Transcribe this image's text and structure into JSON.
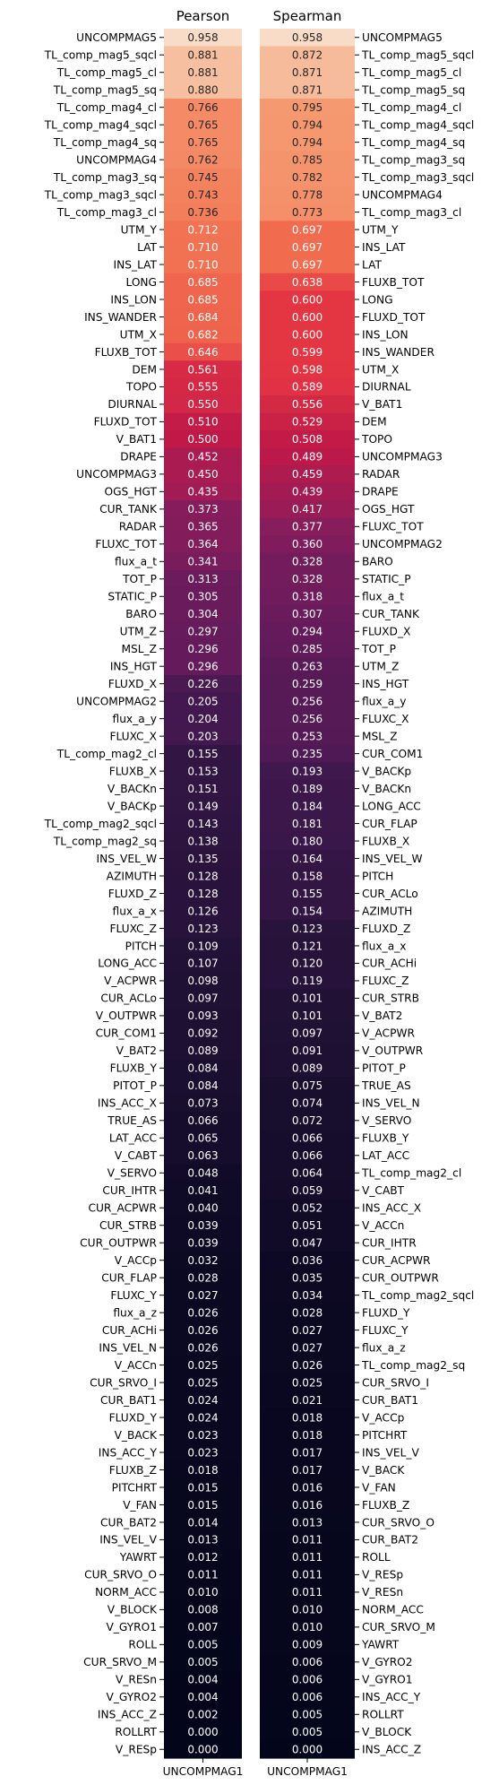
{
  "chart_data": [
    {
      "type": "heatmap",
      "title": "Pearson",
      "xlabel": "",
      "ylabel": "",
      "x_tick_labels": [
        "UNCOMPMAG1"
      ],
      "y_tick_side": "left",
      "colormap": "rocket",
      "color_range": [
        0,
        1
      ],
      "grid": false,
      "rows": [
        {
          "label": "UNCOMPMAG5",
          "value": 0.958
        },
        {
          "label": "TL_comp_mag5_sqcl",
          "value": 0.881
        },
        {
          "label": "TL_comp_mag5_cl",
          "value": 0.881
        },
        {
          "label": "TL_comp_mag5_sq",
          "value": 0.88
        },
        {
          "label": "TL_comp_mag4_cl",
          "value": 0.766
        },
        {
          "label": "TL_comp_mag4_sqcl",
          "value": 0.765
        },
        {
          "label": "TL_comp_mag4_sq",
          "value": 0.765
        },
        {
          "label": "UNCOMPMAG4",
          "value": 0.762
        },
        {
          "label": "TL_comp_mag3_sq",
          "value": 0.745
        },
        {
          "label": "TL_comp_mag3_sqcl",
          "value": 0.743
        },
        {
          "label": "TL_comp_mag3_cl",
          "value": 0.736
        },
        {
          "label": "UTM_Y",
          "value": 0.712
        },
        {
          "label": "LAT",
          "value": 0.71
        },
        {
          "label": "INS_LAT",
          "value": 0.71
        },
        {
          "label": "LONG",
          "value": 0.685
        },
        {
          "label": "INS_LON",
          "value": 0.685
        },
        {
          "label": "INS_WANDER",
          "value": 0.684
        },
        {
          "label": "UTM_X",
          "value": 0.682
        },
        {
          "label": "FLUXB_TOT",
          "value": 0.646
        },
        {
          "label": "DEM",
          "value": 0.561
        },
        {
          "label": "TOPO",
          "value": 0.555
        },
        {
          "label": "DIURNAL",
          "value": 0.55
        },
        {
          "label": "FLUXD_TOT",
          "value": 0.51
        },
        {
          "label": "V_BAT1",
          "value": 0.5
        },
        {
          "label": "DRAPE",
          "value": 0.452
        },
        {
          "label": "UNCOMPMAG3",
          "value": 0.45
        },
        {
          "label": "OGS_HGT",
          "value": 0.435
        },
        {
          "label": "CUR_TANK",
          "value": 0.373
        },
        {
          "label": "RADAR",
          "value": 0.365
        },
        {
          "label": "FLUXC_TOT",
          "value": 0.364
        },
        {
          "label": "flux_a_t",
          "value": 0.341
        },
        {
          "label": "TOT_P",
          "value": 0.313
        },
        {
          "label": "STATIC_P",
          "value": 0.305
        },
        {
          "label": "BARO",
          "value": 0.304
        },
        {
          "label": "UTM_Z",
          "value": 0.297
        },
        {
          "label": "MSL_Z",
          "value": 0.296
        },
        {
          "label": "INS_HGT",
          "value": 0.296
        },
        {
          "label": "FLUXD_X",
          "value": 0.226
        },
        {
          "label": "UNCOMPMAG2",
          "value": 0.205
        },
        {
          "label": "flux_a_y",
          "value": 0.204
        },
        {
          "label": "FLUXC_X",
          "value": 0.203
        },
        {
          "label": "TL_comp_mag2_cl",
          "value": 0.155
        },
        {
          "label": "FLUXB_X",
          "value": 0.153
        },
        {
          "label": "V_BACKn",
          "value": 0.151
        },
        {
          "label": "V_BACKp",
          "value": 0.149
        },
        {
          "label": "TL_comp_mag2_sqcl",
          "value": 0.143
        },
        {
          "label": "TL_comp_mag2_sq",
          "value": 0.138
        },
        {
          "label": "INS_VEL_W",
          "value": 0.135
        },
        {
          "label": "AZIMUTH",
          "value": 0.128
        },
        {
          "label": "FLUXD_Z",
          "value": 0.128
        },
        {
          "label": "flux_a_x",
          "value": 0.126
        },
        {
          "label": "FLUXC_Z",
          "value": 0.123
        },
        {
          "label": "PITCH",
          "value": 0.109
        },
        {
          "label": "LONG_ACC",
          "value": 0.107
        },
        {
          "label": "V_ACPWR",
          "value": 0.098
        },
        {
          "label": "CUR_ACLo",
          "value": 0.097
        },
        {
          "label": "V_OUTPWR",
          "value": 0.093
        },
        {
          "label": "CUR_COM1",
          "value": 0.092
        },
        {
          "label": "V_BAT2",
          "value": 0.089
        },
        {
          "label": "FLUXB_Y",
          "value": 0.084
        },
        {
          "label": "PITOT_P",
          "value": 0.084
        },
        {
          "label": "INS_ACC_X",
          "value": 0.073
        },
        {
          "label": "TRUE_AS",
          "value": 0.066
        },
        {
          "label": "LAT_ACC",
          "value": 0.065
        },
        {
          "label": "V_CABT",
          "value": 0.063
        },
        {
          "label": "V_SERVO",
          "value": 0.048
        },
        {
          "label": "CUR_IHTR",
          "value": 0.041
        },
        {
          "label": "CUR_ACPWR",
          "value": 0.04
        },
        {
          "label": "CUR_STRB",
          "value": 0.039
        },
        {
          "label": "CUR_OUTPWR",
          "value": 0.039
        },
        {
          "label": "V_ACCp",
          "value": 0.032
        },
        {
          "label": "CUR_FLAP",
          "value": 0.028
        },
        {
          "label": "FLUXC_Y",
          "value": 0.027
        },
        {
          "label": "flux_a_z",
          "value": 0.026
        },
        {
          "label": "CUR_ACHi",
          "value": 0.026
        },
        {
          "label": "INS_VEL_N",
          "value": 0.026
        },
        {
          "label": "V_ACCn",
          "value": 0.025
        },
        {
          "label": "CUR_SRVO_I",
          "value": 0.025
        },
        {
          "label": "CUR_BAT1",
          "value": 0.024
        },
        {
          "label": "FLUXD_Y",
          "value": 0.024
        },
        {
          "label": "V_BACK",
          "value": 0.023
        },
        {
          "label": "INS_ACC_Y",
          "value": 0.023
        },
        {
          "label": "FLUXB_Z",
          "value": 0.018
        },
        {
          "label": "PITCHRT",
          "value": 0.015
        },
        {
          "label": "V_FAN",
          "value": 0.015
        },
        {
          "label": "CUR_BAT2",
          "value": 0.014
        },
        {
          "label": "INS_VEL_V",
          "value": 0.013
        },
        {
          "label": "YAWRT",
          "value": 0.012
        },
        {
          "label": "CUR_SRVO_O",
          "value": 0.011
        },
        {
          "label": "NORM_ACC",
          "value": 0.01
        },
        {
          "label": "V_BLOCK",
          "value": 0.008
        },
        {
          "label": "V_GYRO1",
          "value": 0.007
        },
        {
          "label": "ROLL",
          "value": 0.005
        },
        {
          "label": "CUR_SRVO_M",
          "value": 0.005
        },
        {
          "label": "V_RESn",
          "value": 0.004
        },
        {
          "label": "V_GYRO2",
          "value": 0.004
        },
        {
          "label": "INS_ACC_Z",
          "value": 0.002
        },
        {
          "label": "ROLLRT",
          "value": 0.0
        },
        {
          "label": "V_RESp",
          "value": 0.0
        }
      ]
    },
    {
      "type": "heatmap",
      "title": "Spearman",
      "xlabel": "",
      "ylabel": "",
      "x_tick_labels": [
        "UNCOMPMAG1"
      ],
      "y_tick_side": "right",
      "colormap": "rocket",
      "color_range": [
        0,
        1
      ],
      "grid": false,
      "rows": [
        {
          "label": "UNCOMPMAG5",
          "value": 0.958
        },
        {
          "label": "TL_comp_mag5_sqcl",
          "value": 0.872
        },
        {
          "label": "TL_comp_mag5_cl",
          "value": 0.871
        },
        {
          "label": "TL_comp_mag5_sq",
          "value": 0.871
        },
        {
          "label": "TL_comp_mag4_cl",
          "value": 0.795
        },
        {
          "label": "TL_comp_mag4_sqcl",
          "value": 0.794
        },
        {
          "label": "TL_comp_mag4_sq",
          "value": 0.794
        },
        {
          "label": "TL_comp_mag3_sq",
          "value": 0.785
        },
        {
          "label": "TL_comp_mag3_sqcl",
          "value": 0.782
        },
        {
          "label": "UNCOMPMAG4",
          "value": 0.778
        },
        {
          "label": "TL_comp_mag3_cl",
          "value": 0.773
        },
        {
          "label": "UTM_Y",
          "value": 0.697
        },
        {
          "label": "INS_LAT",
          "value": 0.697
        },
        {
          "label": "LAT",
          "value": 0.697
        },
        {
          "label": "FLUXB_TOT",
          "value": 0.638
        },
        {
          "label": "LONG",
          "value": 0.6
        },
        {
          "label": "FLUXD_TOT",
          "value": 0.6
        },
        {
          "label": "INS_LON",
          "value": 0.6
        },
        {
          "label": "INS_WANDER",
          "value": 0.599
        },
        {
          "label": "UTM_X",
          "value": 0.598
        },
        {
          "label": "DIURNAL",
          "value": 0.589
        },
        {
          "label": "V_BAT1",
          "value": 0.556
        },
        {
          "label": "DEM",
          "value": 0.529
        },
        {
          "label": "TOPO",
          "value": 0.508
        },
        {
          "label": "UNCOMPMAG3",
          "value": 0.489
        },
        {
          "label": "RADAR",
          "value": 0.459
        },
        {
          "label": "DRAPE",
          "value": 0.439
        },
        {
          "label": "OGS_HGT",
          "value": 0.417
        },
        {
          "label": "FLUXC_TOT",
          "value": 0.377
        },
        {
          "label": "UNCOMPMAG2",
          "value": 0.36
        },
        {
          "label": "BARO",
          "value": 0.328
        },
        {
          "label": "STATIC_P",
          "value": 0.328
        },
        {
          "label": "flux_a_t",
          "value": 0.318
        },
        {
          "label": "CUR_TANK",
          "value": 0.307
        },
        {
          "label": "FLUXD_X",
          "value": 0.294
        },
        {
          "label": "TOT_P",
          "value": 0.285
        },
        {
          "label": "UTM_Z",
          "value": 0.263
        },
        {
          "label": "INS_HGT",
          "value": 0.259
        },
        {
          "label": "flux_a_y",
          "value": 0.256
        },
        {
          "label": "FLUXC_X",
          "value": 0.256
        },
        {
          "label": "MSL_Z",
          "value": 0.253
        },
        {
          "label": "CUR_COM1",
          "value": 0.235
        },
        {
          "label": "V_BACKp",
          "value": 0.193
        },
        {
          "label": "V_BACKn",
          "value": 0.189
        },
        {
          "label": "LONG_ACC",
          "value": 0.184
        },
        {
          "label": "CUR_FLAP",
          "value": 0.181
        },
        {
          "label": "FLUXB_X",
          "value": 0.18
        },
        {
          "label": "INS_VEL_W",
          "value": 0.164
        },
        {
          "label": "PITCH",
          "value": 0.158
        },
        {
          "label": "CUR_ACLo",
          "value": 0.155
        },
        {
          "label": "AZIMUTH",
          "value": 0.154
        },
        {
          "label": "FLUXD_Z",
          "value": 0.123
        },
        {
          "label": "flux_a_x",
          "value": 0.121
        },
        {
          "label": "CUR_ACHi",
          "value": 0.12
        },
        {
          "label": "FLUXC_Z",
          "value": 0.119
        },
        {
          "label": "CUR_STRB",
          "value": 0.101
        },
        {
          "label": "V_BAT2",
          "value": 0.101
        },
        {
          "label": "V_ACPWR",
          "value": 0.097
        },
        {
          "label": "V_OUTPWR",
          "value": 0.091
        },
        {
          "label": "PITOT_P",
          "value": 0.089
        },
        {
          "label": "TRUE_AS",
          "value": 0.075
        },
        {
          "label": "INS_VEL_N",
          "value": 0.074
        },
        {
          "label": "V_SERVO",
          "value": 0.072
        },
        {
          "label": "FLUXB_Y",
          "value": 0.066
        },
        {
          "label": "LAT_ACC",
          "value": 0.066
        },
        {
          "label": "TL_comp_mag2_cl",
          "value": 0.064
        },
        {
          "label": "V_CABT",
          "value": 0.059
        },
        {
          "label": "INS_ACC_X",
          "value": 0.052
        },
        {
          "label": "V_ACCn",
          "value": 0.051
        },
        {
          "label": "CUR_IHTR",
          "value": 0.047
        },
        {
          "label": "CUR_ACPWR",
          "value": 0.036
        },
        {
          "label": "CUR_OUTPWR",
          "value": 0.035
        },
        {
          "label": "TL_comp_mag2_sqcl",
          "value": 0.034
        },
        {
          "label": "FLUXD_Y",
          "value": 0.028
        },
        {
          "label": "FLUXC_Y",
          "value": 0.027
        },
        {
          "label": "flux_a_z",
          "value": 0.027
        },
        {
          "label": "TL_comp_mag2_sq",
          "value": 0.026
        },
        {
          "label": "CUR_SRVO_I",
          "value": 0.025
        },
        {
          "label": "CUR_BAT1",
          "value": 0.021
        },
        {
          "label": "V_ACCp",
          "value": 0.018
        },
        {
          "label": "PITCHRT",
          "value": 0.018
        },
        {
          "label": "INS_VEL_V",
          "value": 0.017
        },
        {
          "label": "V_BACK",
          "value": 0.017
        },
        {
          "label": "V_FAN",
          "value": 0.016
        },
        {
          "label": "FLUXB_Z",
          "value": 0.016
        },
        {
          "label": "CUR_SRVO_O",
          "value": 0.013
        },
        {
          "label": "CUR_BAT2",
          "value": 0.011
        },
        {
          "label": "ROLL",
          "value": 0.011
        },
        {
          "label": "V_RESp",
          "value": 0.011
        },
        {
          "label": "V_RESn",
          "value": 0.011
        },
        {
          "label": "NORM_ACC",
          "value": 0.01
        },
        {
          "label": "CUR_SRVO_M",
          "value": 0.01
        },
        {
          "label": "YAWRT",
          "value": 0.009
        },
        {
          "label": "V_GYRO2",
          "value": 0.006
        },
        {
          "label": "V_GYRO1",
          "value": 0.006
        },
        {
          "label": "INS_ACC_Y",
          "value": 0.006
        },
        {
          "label": "ROLLRT",
          "value": 0.005
        },
        {
          "label": "V_BLOCK",
          "value": 0.005
        },
        {
          "label": "INS_ACC_Z",
          "value": 0.0
        }
      ]
    }
  ]
}
